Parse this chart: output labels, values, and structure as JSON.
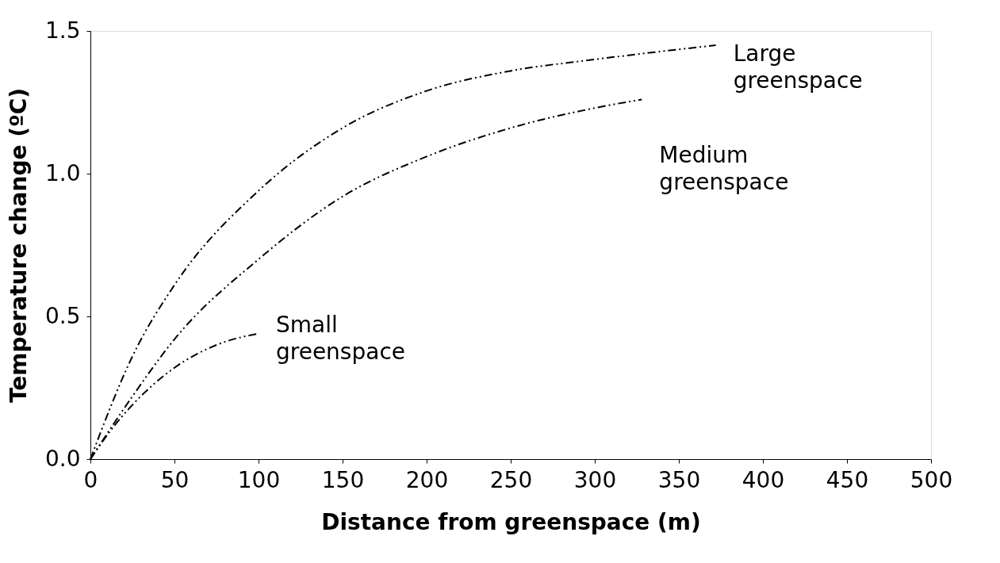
{
  "chart_data": {
    "type": "line",
    "xlabel": "Distance from greenspace (m)",
    "ylabel": "Temperature change  (ºC)",
    "xlim": [
      0,
      500
    ],
    "xticks": [
      0,
      50,
      100,
      150,
      200,
      250,
      300,
      350,
      400,
      450,
      500
    ],
    "ylim": [
      0,
      1.5
    ],
    "yticks": [
      {
        "value": 0,
        "label": "0.0"
      },
      {
        "value": 0.5,
        "label": "0.5"
      },
      {
        "value": 1,
        "label": "1.0"
      },
      {
        "value": 1.5,
        "label": "1.5"
      }
    ],
    "grid": false,
    "legend": false,
    "marker": "none",
    "series": [
      {
        "name": "Small\ngreenspace",
        "color": "#000000",
        "line_style": "dashed",
        "x": [
          0,
          12,
          25,
          50,
          75,
          100
        ],
        "values": [
          0,
          0.1,
          0.19,
          0.32,
          0.4,
          0.44
        ]
      },
      {
        "name": "Medium\ngreenspace",
        "color": "#000000",
        "line_style": "dashed",
        "x": [
          0,
          25,
          50,
          100,
          150,
          200,
          250,
          300,
          328
        ],
        "values": [
          0,
          0.22,
          0.42,
          0.7,
          0.92,
          1.06,
          1.16,
          1.23,
          1.26
        ]
      },
      {
        "name": "Large\ngreenspace",
        "color": "#000000",
        "line_style": "dashed",
        "x": [
          0,
          25,
          50,
          100,
          150,
          200,
          250,
          300,
          372
        ],
        "values": [
          0,
          0.36,
          0.61,
          0.94,
          1.16,
          1.29,
          1.36,
          1.4,
          1.45
        ]
      }
    ]
  }
}
